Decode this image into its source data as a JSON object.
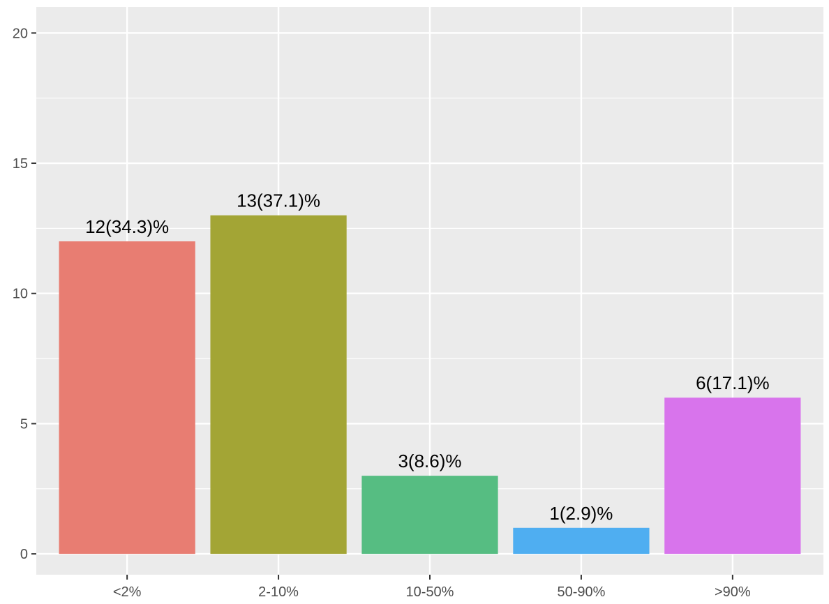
{
  "chart_data": {
    "type": "bar",
    "categories": [
      "<2%",
      "2-10%",
      "10-50%",
      "50-90%",
      ">90%"
    ],
    "values": [
      12,
      13,
      3,
      1,
      6
    ],
    "labels": [
      "12(34.3)%",
      "13(37.1)%",
      "3(8.6)%",
      "1(2.9)%",
      "6(17.1)%"
    ],
    "colors": [
      "#E87D72",
      "#A3A535",
      "#56BD82",
      "#4FAEF1",
      "#D874EC"
    ],
    "yticks": [
      0,
      5,
      10,
      15,
      20
    ],
    "ytick_labels": [
      "0",
      "5",
      "10",
      "15",
      "20"
    ],
    "ylim": [
      -0.8,
      21
    ],
    "grid": true,
    "legend": "none",
    "panel_background": "#EBEBEB",
    "grid_color": "#FFFFFF"
  }
}
